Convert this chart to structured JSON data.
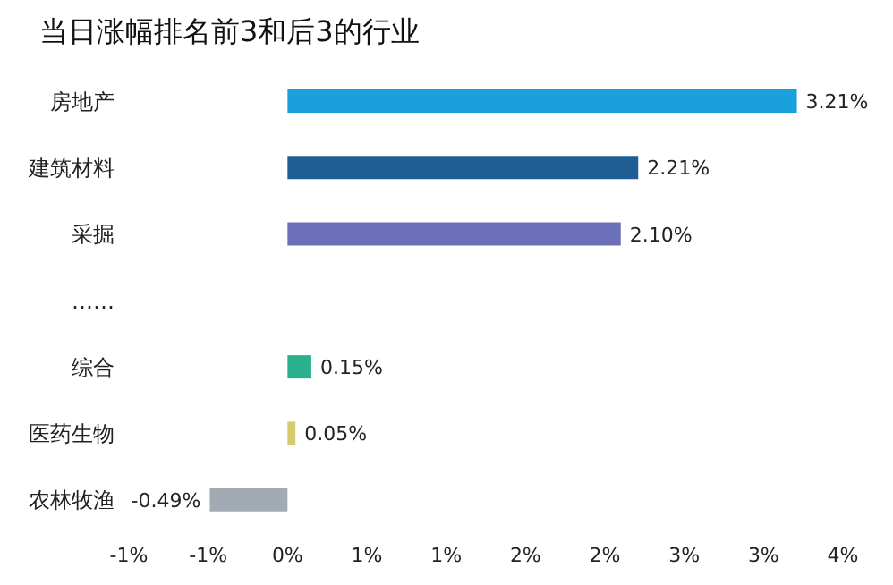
{
  "chart_data": {
    "type": "bar",
    "orientation": "horizontal",
    "title": "当日涨幅排名前3和后3的行业",
    "categories": [
      "房地产",
      "建筑材料",
      "采掘",
      "……",
      "综合",
      "医药生物",
      "农林牧渔"
    ],
    "values": [
      3.21,
      2.21,
      2.1,
      null,
      0.15,
      0.05,
      -0.49
    ],
    "colors": [
      "#1aa0da",
      "#1f5e95",
      "#6c70b8",
      "#000000",
      "#2bb08e",
      "#d6cb6c",
      "#a2abb3"
    ],
    "value_labels": [
      "3.21%",
      "2.21%",
      "2.10%",
      null,
      "0.15%",
      "0.05%",
      "-0.49%"
    ],
    "xlim": [
      -1,
      3.5
    ],
    "xticks": [
      {
        "value": -1,
        "label": "-1%"
      },
      {
        "value": -0.5,
        "label": "-1%"
      },
      {
        "value": 0,
        "label": "0%"
      },
      {
        "value": 0.5,
        "label": "1%"
      },
      {
        "value": 1,
        "label": "1%"
      },
      {
        "value": 1.5,
        "label": "2%"
      },
      {
        "value": 2,
        "label": "2%"
      },
      {
        "value": 2.5,
        "label": "3%"
      },
      {
        "value": 3,
        "label": "3%"
      },
      {
        "value": 3.5,
        "label": "4%"
      }
    ],
    "grid": false,
    "legend": false
  }
}
